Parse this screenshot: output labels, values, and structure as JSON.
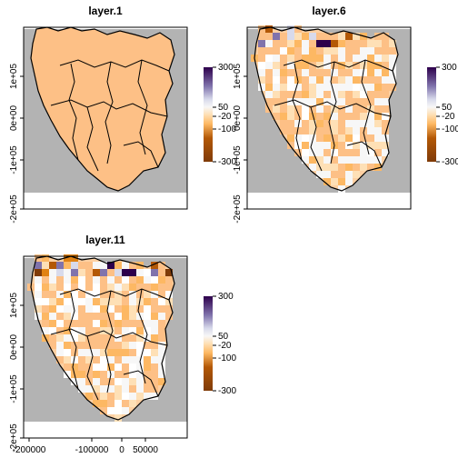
{
  "chart_data": {
    "type": "heatmap",
    "x_ticks": [
      "-200000",
      "-100000",
      "0",
      "50000"
    ],
    "y_ticks": [
      "-2e+05",
      "-1e+05",
      "0e+00",
      "1e+05"
    ],
    "colorbar_ticks": [
      "300",
      "50",
      "-20",
      "-100",
      "-300"
    ],
    "colorbar_range": [
      -300,
      300
    ],
    "colors": {
      "background": "#b3b3b3",
      "low": "#7f3b08",
      "mid_low": "#fdc086",
      "neutral": "#f7f7f7",
      "high": "#2d004b",
      "outline": "#000000"
    },
    "panels": [
      {
        "title": "layer.1"
      },
      {
        "title": "layer.6"
      },
      {
        "title": "layer.11"
      }
    ]
  }
}
